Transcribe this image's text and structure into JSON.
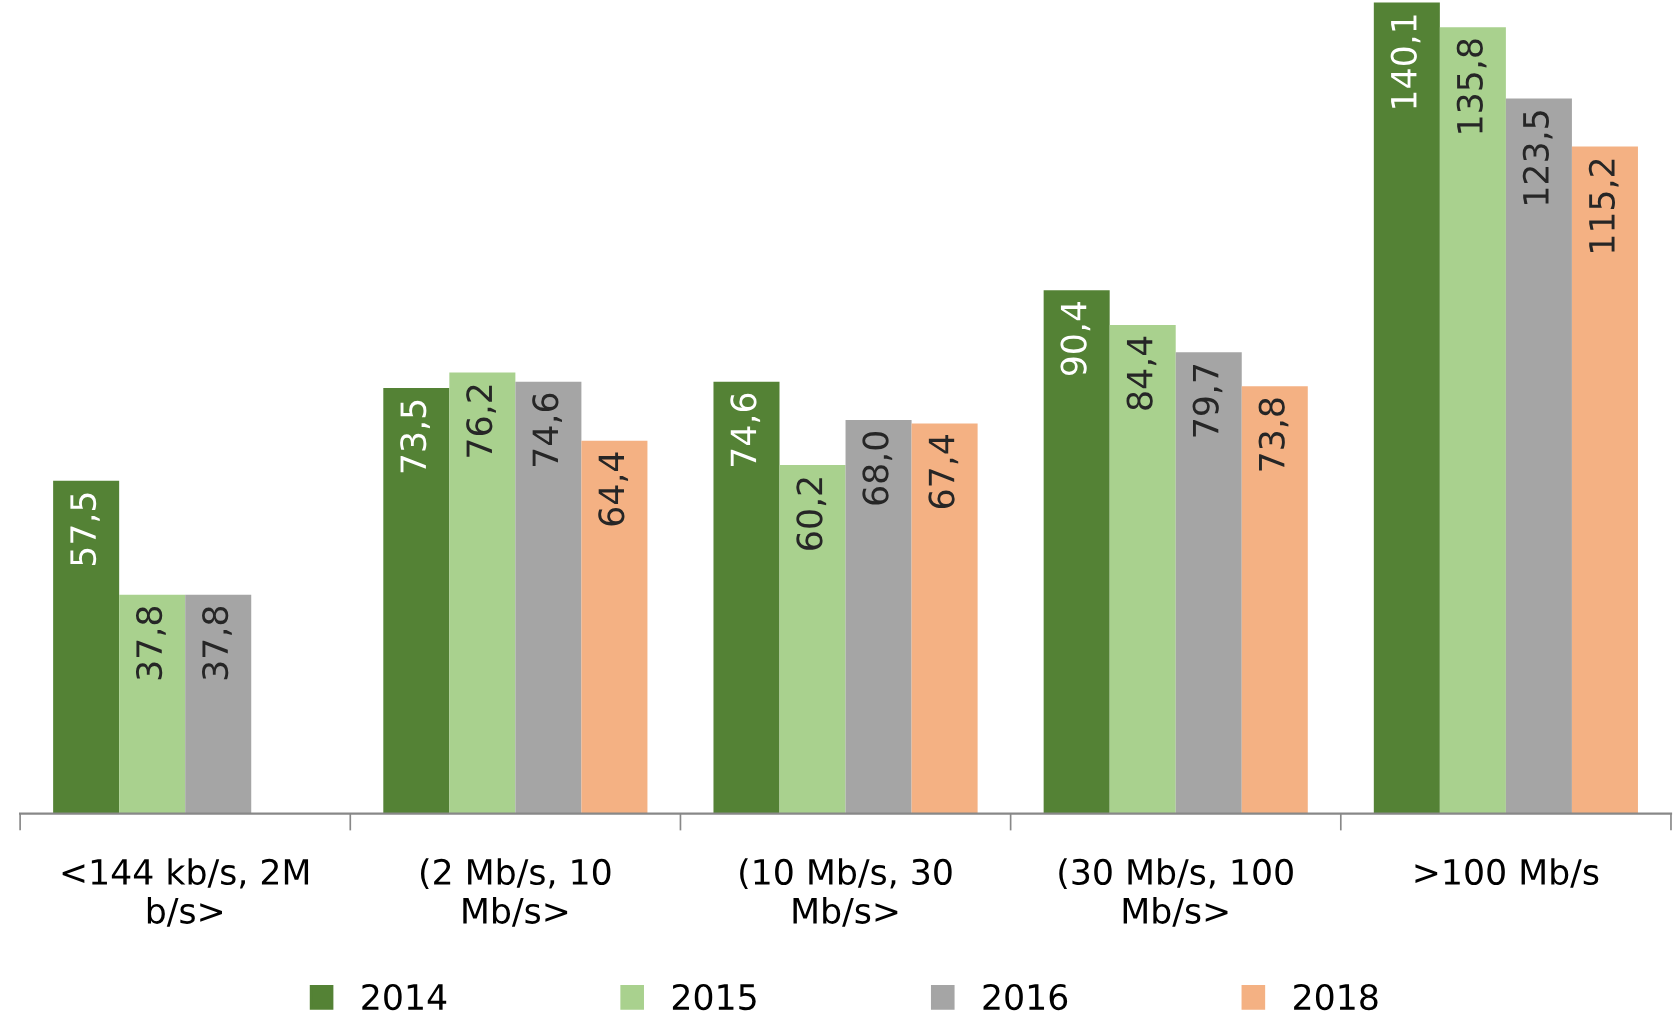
{
  "chart_data": {
    "type": "bar",
    "categories": [
      "<144 kb/s, 2M\nb/s>",
      "(2 Mb/s, 10\nMb/s>",
      "(10 Mb/s, 30\nMb/s>",
      "(30 Mb/s, 100\nMb/s>",
      ">100 Mb/s"
    ],
    "series": [
      {
        "name": "2014",
        "color": "#548235",
        "values": [
          57.5,
          73.5,
          74.6,
          90.4,
          140.1
        ],
        "value_labels": [
          "57,5",
          "73,5",
          "74,6",
          "90,4",
          "140,1"
        ]
      },
      {
        "name": "2015",
        "color": "#a9d18e",
        "values": [
          37.8,
          76.2,
          60.2,
          84.4,
          135.8
        ],
        "value_labels": [
          "37,8",
          "76,2",
          "60,2",
          "84,4",
          "135,8"
        ]
      },
      {
        "name": "2016",
        "color": "#a5a5a5",
        "values": [
          37.8,
          74.6,
          68.0,
          79.7,
          123.5
        ],
        "value_labels": [
          "37,8",
          "74,6",
          "68,0",
          "79,7",
          "123,5"
        ]
      },
      {
        "name": "2018",
        "color": "#f4b183",
        "values": [
          null,
          64.4,
          67.4,
          73.8,
          115.2
        ],
        "value_labels": [
          null,
          "64,4",
          "67,4",
          "73,8",
          "115,2"
        ]
      }
    ],
    "legend": "bottom",
    "grid": false
  }
}
